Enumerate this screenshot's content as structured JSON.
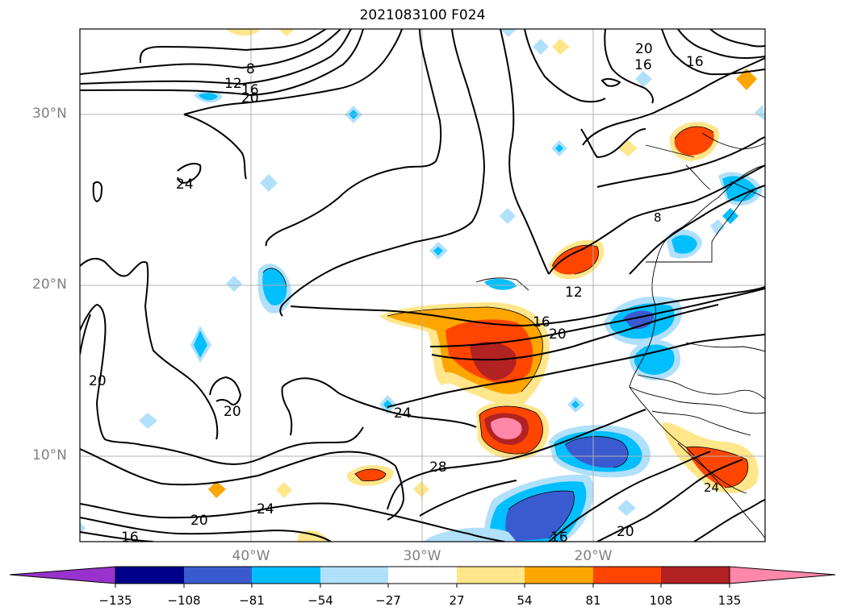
{
  "title": "2021083100 F024",
  "map": {
    "lat_range": [
      5,
      35
    ],
    "lon_range": [
      -50,
      -10
    ],
    "lat_labels": [
      "30°N",
      "20°N",
      "10°N"
    ],
    "lon_labels": [
      "40°W",
      "30°W",
      "20°W"
    ],
    "contour_labels": [
      "8",
      "12",
      "16",
      "20",
      "20",
      "16",
      "16",
      "24",
      "12",
      "16",
      "20",
      "20",
      "20",
      "24",
      "28",
      "24",
      "20",
      "16",
      "20",
      "16",
      "8",
      "24"
    ]
  },
  "colorbar": {
    "ticks": [
      "−135",
      "−108",
      "−81",
      "−54",
      "−27",
      "27",
      "54",
      "81",
      "108",
      "135"
    ],
    "colors": [
      "#9932cc",
      "#00008b",
      "#3a5bd0",
      "#00bfff",
      "#b0e0fa",
      "#ffffff",
      "#ffe68a",
      "#ffa500",
      "#ff4500",
      "#b22222",
      "#ff88aa",
      "#ff88aa"
    ],
    "extend": "both"
  }
}
